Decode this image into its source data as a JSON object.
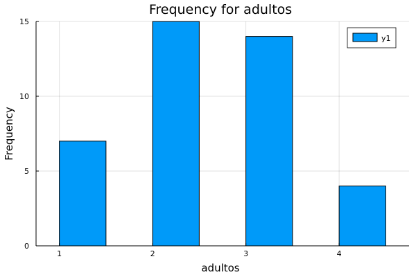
{
  "chart_data": {
    "type": "bar",
    "title": "Frequency for adultos",
    "xlabel": "adultos",
    "ylabel": "Frequency",
    "x": [
      1,
      2,
      3,
      4
    ],
    "series": [
      {
        "name": "y1",
        "values": [
          7,
          15,
          14,
          4
        ],
        "color": "#009af9"
      }
    ],
    "xlim": [
      0.75,
      4.75
    ],
    "ylim": [
      0,
      15
    ],
    "xticks": [
      1,
      2,
      3,
      4
    ],
    "yticks": [
      0,
      5,
      10,
      15
    ],
    "bar_range": 0.5,
    "grid": true,
    "legend_position": "top-right"
  }
}
